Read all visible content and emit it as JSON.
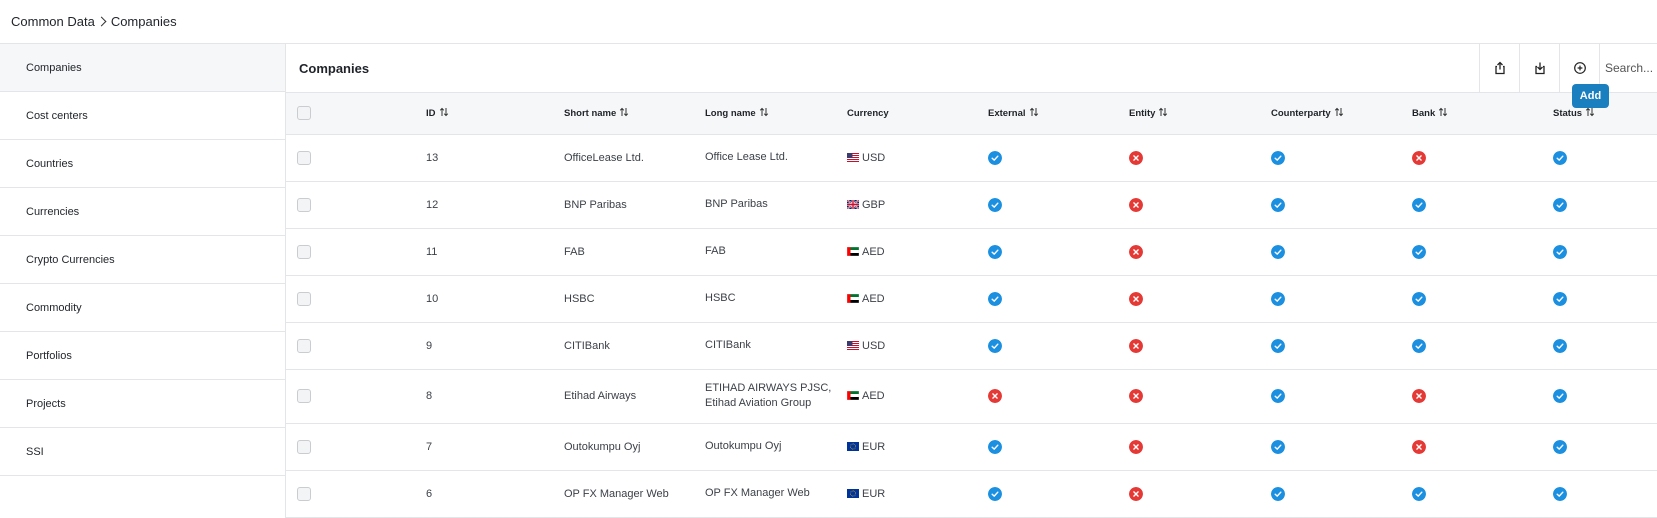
{
  "breadcrumb": {
    "root": "Common Data",
    "current": "Companies"
  },
  "sidebar": {
    "items": [
      {
        "label": "Companies",
        "active": true
      },
      {
        "label": "Cost centers"
      },
      {
        "label": "Countries"
      },
      {
        "label": "Currencies"
      },
      {
        "label": "Crypto Currencies"
      },
      {
        "label": "Commodity"
      },
      {
        "label": "Portfolios"
      },
      {
        "label": "Projects"
      },
      {
        "label": "SSI"
      }
    ]
  },
  "main": {
    "title": "Companies",
    "actions": {
      "export_icon": "upload-icon",
      "import_icon": "download-icon",
      "add_icon": "plus-circle-icon",
      "add_tooltip": "Add"
    },
    "search": {
      "placeholder": "Search..."
    }
  },
  "table": {
    "columns": {
      "id": "ID",
      "short_name": "Short name",
      "long_name": "Long name",
      "currency": "Currency",
      "external": "External",
      "entity": "Entity",
      "counterparty": "Counterparty",
      "bank": "Bank",
      "status": "Status"
    },
    "rows": [
      {
        "id": "13",
        "short": "OfficeLease Ltd.",
        "long": "Office Lease Ltd.",
        "long2": "",
        "flag": "US",
        "currency": "USD",
        "external": true,
        "entity": false,
        "counterparty": true,
        "bank": false,
        "status": true
      },
      {
        "id": "12",
        "short": "BNP Paribas",
        "long": "BNP Paribas",
        "long2": "",
        "flag": "GB",
        "currency": "GBP",
        "external": true,
        "entity": false,
        "counterparty": true,
        "bank": true,
        "status": true
      },
      {
        "id": "11",
        "short": "FAB",
        "long": "FAB",
        "long2": "",
        "flag": "AE",
        "currency": "AED",
        "external": true,
        "entity": false,
        "counterparty": true,
        "bank": true,
        "status": true
      },
      {
        "id": "10",
        "short": "HSBC",
        "long": "HSBC",
        "long2": "",
        "flag": "AE",
        "currency": "AED",
        "external": true,
        "entity": false,
        "counterparty": true,
        "bank": true,
        "status": true
      },
      {
        "id": "9",
        "short": "CITIBank",
        "long": "CITIBank",
        "long2": "",
        "flag": "US",
        "currency": "USD",
        "external": true,
        "entity": false,
        "counterparty": true,
        "bank": true,
        "status": true
      },
      {
        "id": "8",
        "short": "Etihad Airways",
        "long": "ETIHAD AIRWAYS PJSC,",
        "long2": "Etihad Aviation Group",
        "flag": "AE",
        "currency": "AED",
        "external": false,
        "entity": false,
        "counterparty": true,
        "bank": false,
        "status": true
      },
      {
        "id": "7",
        "short": "Outokumpu Oyj",
        "long": "Outokumpu Oyj",
        "long2": "",
        "flag": "EU",
        "currency": "EUR",
        "external": true,
        "entity": false,
        "counterparty": true,
        "bank": false,
        "status": true
      },
      {
        "id": "6",
        "short": "OP FX Manager Web",
        "long": "OP FX Manager Web",
        "long2": "",
        "flag": "EU",
        "currency": "EUR",
        "external": true,
        "entity": false,
        "counterparty": true,
        "bank": true,
        "status": true
      }
    ]
  },
  "colors": {
    "check_ok": "#1b8fe0",
    "check_no": "#e53935",
    "accent": "#1a7fbf"
  }
}
